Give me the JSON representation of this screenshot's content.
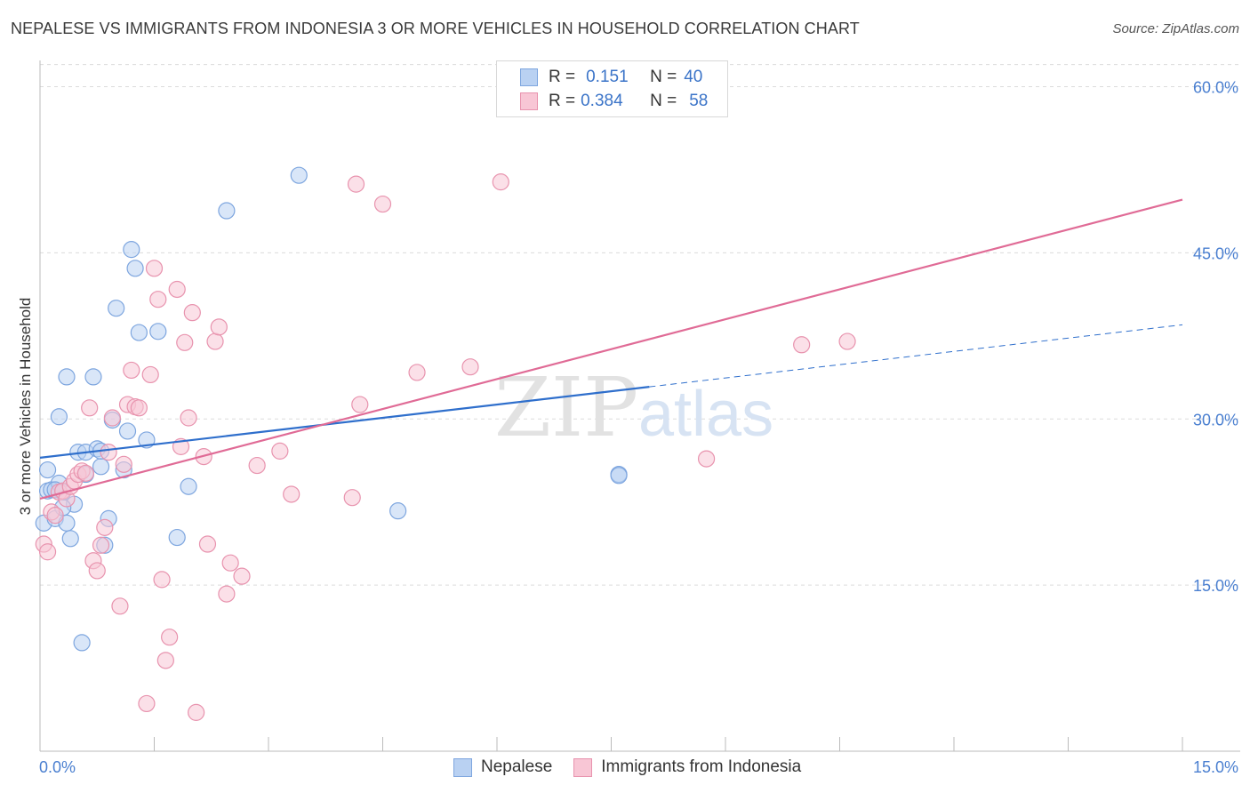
{
  "title": "NEPALESE VS IMMIGRANTS FROM INDONESIA 3 OR MORE VEHICLES IN HOUSEHOLD CORRELATION CHART",
  "source": "Source: ZipAtlas.com",
  "watermark": {
    "zip": "ZIP",
    "atlas": "atlas"
  },
  "legend": {
    "r_label": "R =",
    "n_label": "N =",
    "rows": [
      {
        "r": "0.151",
        "n": "40",
        "fill": "#b9d1f2",
        "stroke": "#7ea6df"
      },
      {
        "r": "0.384",
        "n": "58",
        "fill": "#f8c6d5",
        "stroke": "#e893ae"
      }
    ]
  },
  "chart_data": {
    "type": "scatter",
    "title": "NEPALESE VS IMMIGRANTS FROM INDONESIA 3 OR MORE VEHICLES IN HOUSEHOLD CORRELATION CHART",
    "xlabel": "",
    "ylabel": "3 or more Vehicles in Household",
    "xlim": [
      0,
      15
    ],
    "ylim": [
      0,
      62
    ],
    "x_tick_labels": [
      "0.0%",
      "15.0%"
    ],
    "y_ticks": [
      15,
      30,
      45,
      60
    ],
    "y_tick_labels": [
      "15.0%",
      "30.0%",
      "45.0%",
      "60.0%"
    ],
    "grid": true,
    "series": [
      {
        "name": "Nepalese",
        "color": "#7ea6df",
        "fill": "#b9d1f2",
        "line_color": "#2f6fcc",
        "trend": {
          "x0": 0,
          "y0": 26.5,
          "x1": 8.0,
          "y1": 32.9,
          "dashed_to_x": 15,
          "dashed_to_y": 38.5
        },
        "points": [
          [
            0.05,
            20.6
          ],
          [
            0.1,
            23.5
          ],
          [
            0.1,
            25.4
          ],
          [
            0.15,
            23.6
          ],
          [
            0.2,
            21.0
          ],
          [
            0.25,
            30.2
          ],
          [
            0.25,
            24.2
          ],
          [
            0.3,
            23.4
          ],
          [
            0.35,
            33.8
          ],
          [
            0.35,
            20.6
          ],
          [
            0.4,
            19.2
          ],
          [
            0.45,
            22.3
          ],
          [
            0.5,
            27.0
          ],
          [
            0.55,
            9.8
          ],
          [
            0.6,
            27.0
          ],
          [
            0.7,
            33.8
          ],
          [
            0.75,
            27.3
          ],
          [
            0.8,
            25.7
          ],
          [
            0.8,
            27.1
          ],
          [
            0.85,
            18.6
          ],
          [
            0.9,
            21.0
          ],
          [
            0.95,
            29.9
          ],
          [
            1.0,
            40.0
          ],
          [
            1.1,
            25.4
          ],
          [
            1.15,
            28.9
          ],
          [
            1.2,
            45.3
          ],
          [
            1.25,
            43.6
          ],
          [
            1.3,
            37.8
          ],
          [
            1.4,
            28.1
          ],
          [
            1.55,
            37.9
          ],
          [
            1.8,
            19.3
          ],
          [
            1.95,
            23.9
          ],
          [
            2.45,
            48.8
          ],
          [
            3.4,
            52.0
          ],
          [
            4.7,
            21.7
          ],
          [
            7.6,
            25.0
          ],
          [
            0.6,
            25.0
          ],
          [
            0.3,
            22.0
          ],
          [
            0.2,
            23.6
          ],
          [
            7.6,
            24.9
          ]
        ]
      },
      {
        "name": "Immigrants from Indonesia",
        "color": "#e893ae",
        "fill": "#f8c6d5",
        "line_color": "#e06b96",
        "trend": {
          "x0": 0,
          "y0": 22.8,
          "x1": 15,
          "y1": 49.8
        },
        "points": [
          [
            0.05,
            18.7
          ],
          [
            0.1,
            18.0
          ],
          [
            0.15,
            21.6
          ],
          [
            0.2,
            21.3
          ],
          [
            0.25,
            23.4
          ],
          [
            0.3,
            23.5
          ],
          [
            0.35,
            22.8
          ],
          [
            0.4,
            23.9
          ],
          [
            0.45,
            24.4
          ],
          [
            0.5,
            25.0
          ],
          [
            0.55,
            25.3
          ],
          [
            0.6,
            25.1
          ],
          [
            0.65,
            31.0
          ],
          [
            0.7,
            17.2
          ],
          [
            0.75,
            16.3
          ],
          [
            0.8,
            18.6
          ],
          [
            0.85,
            20.2
          ],
          [
            0.9,
            27.0
          ],
          [
            0.95,
            30.1
          ],
          [
            1.05,
            13.1
          ],
          [
            1.1,
            25.9
          ],
          [
            1.15,
            31.3
          ],
          [
            1.2,
            34.4
          ],
          [
            1.25,
            31.1
          ],
          [
            1.3,
            31.0
          ],
          [
            1.4,
            4.3
          ],
          [
            1.45,
            34.0
          ],
          [
            1.5,
            43.6
          ],
          [
            1.55,
            40.8
          ],
          [
            1.6,
            15.5
          ],
          [
            1.65,
            8.2
          ],
          [
            1.7,
            10.3
          ],
          [
            1.8,
            41.7
          ],
          [
            1.85,
            27.5
          ],
          [
            1.9,
            36.9
          ],
          [
            1.95,
            30.1
          ],
          [
            2.0,
            39.6
          ],
          [
            2.05,
            3.5
          ],
          [
            2.15,
            26.6
          ],
          [
            2.2,
            18.7
          ],
          [
            2.3,
            37.0
          ],
          [
            2.35,
            38.3
          ],
          [
            2.45,
            14.2
          ],
          [
            2.5,
            17.0
          ],
          [
            2.65,
            15.8
          ],
          [
            2.85,
            25.8
          ],
          [
            3.15,
            27.1
          ],
          [
            3.3,
            23.2
          ],
          [
            4.1,
            22.9
          ],
          [
            4.2,
            31.3
          ],
          [
            4.15,
            51.2
          ],
          [
            4.5,
            49.4
          ],
          [
            4.95,
            34.2
          ],
          [
            5.65,
            34.7
          ],
          [
            6.05,
            51.4
          ],
          [
            8.75,
            26.4
          ],
          [
            10.0,
            36.7
          ],
          [
            10.6,
            37.0
          ]
        ]
      }
    ]
  },
  "bottom_legend": [
    "Nepalese",
    "Immigrants from Indonesia"
  ]
}
